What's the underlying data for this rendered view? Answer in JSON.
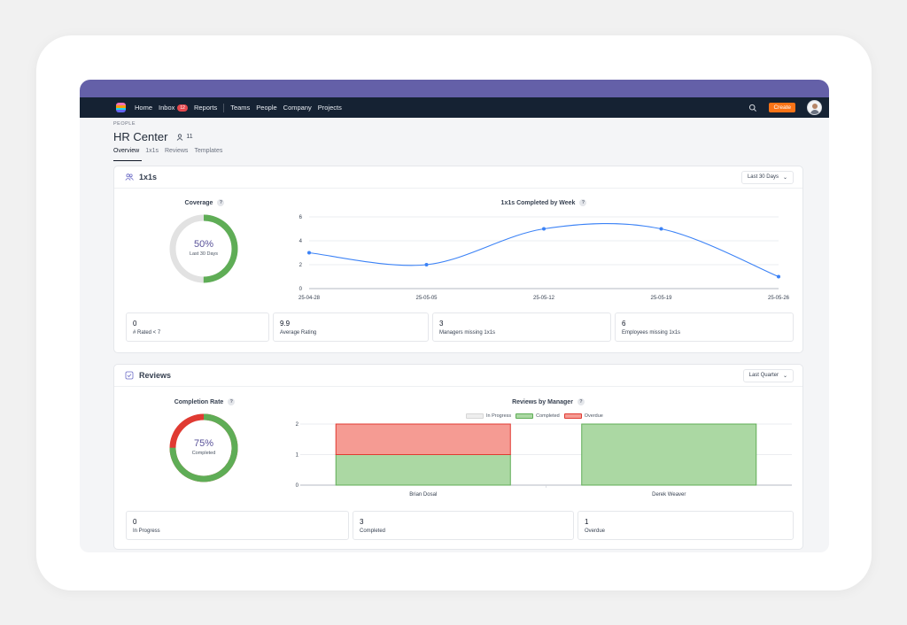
{
  "nav": {
    "items": [
      {
        "label": "Home"
      },
      {
        "label": "Inbox",
        "badge": "12"
      },
      {
        "label": "Reports"
      },
      {
        "label": "Teams"
      },
      {
        "label": "People"
      },
      {
        "label": "Company"
      },
      {
        "label": "Projects"
      }
    ],
    "create_label": "Create",
    "colors": {
      "top_band": "#6460a8",
      "navbar": "#152233",
      "create": "#f97316",
      "badge": "#e5484d"
    }
  },
  "header": {
    "breadcrumb": "PEOPLE",
    "title": "HR Center",
    "member_count": "11",
    "tabs": [
      {
        "label": "Overview",
        "active": true
      },
      {
        "label": "1x1s"
      },
      {
        "label": "Reviews"
      },
      {
        "label": "Templates"
      }
    ]
  },
  "one_on_ones": {
    "title": "1x1s",
    "range": "Last 30 Days",
    "coverage": {
      "label": "Coverage",
      "value": "50%",
      "sublabel": "Last 30 Days",
      "fraction": 0.5
    },
    "stats": [
      {
        "value": "0",
        "label": "# Rated < 7"
      },
      {
        "value": "9.9",
        "label": "Average Rating"
      },
      {
        "value": "3",
        "label": "Managers missing 1x1s"
      },
      {
        "value": "6",
        "label": "Employees missing 1x1s"
      }
    ]
  },
  "reviews": {
    "title": "Reviews",
    "range": "Last Quarter",
    "completion": {
      "label": "Completion Rate",
      "value": "75%",
      "sublabel": "Completed",
      "fraction": 0.75
    },
    "stats": [
      {
        "value": "0",
        "label": "In Progress"
      },
      {
        "value": "3",
        "label": "Completed"
      },
      {
        "value": "1",
        "label": "Overdue"
      }
    ]
  },
  "chart_data": [
    {
      "type": "line",
      "title": "1x1s Completed by Week",
      "x": [
        "25-04-28",
        "25-05-05",
        "25-05-12",
        "25-05-19",
        "25-05-26"
      ],
      "values": [
        3,
        2,
        5,
        5,
        1
      ],
      "ylim": [
        0,
        6
      ],
      "yticks": [
        "0",
        "2",
        "4",
        "6"
      ],
      "color": "#3b82f6",
      "grid": true
    },
    {
      "type": "bar",
      "title": "Reviews by Manager",
      "categories": [
        "Brian Dosal",
        "Derek Weaver"
      ],
      "stacked": true,
      "ylim": [
        0,
        2
      ],
      "yticks": [
        "0",
        "1",
        "2"
      ],
      "series": [
        {
          "name": "In Progress",
          "values": [
            0,
            0
          ],
          "color": "#e5e7eb"
        },
        {
          "name": "Completed",
          "values": [
            1,
            2
          ],
          "color": "#abd8a3"
        },
        {
          "name": "Overdue",
          "values": [
            1,
            0
          ],
          "color": "#f59b93"
        }
      ],
      "legend": "top"
    }
  ]
}
